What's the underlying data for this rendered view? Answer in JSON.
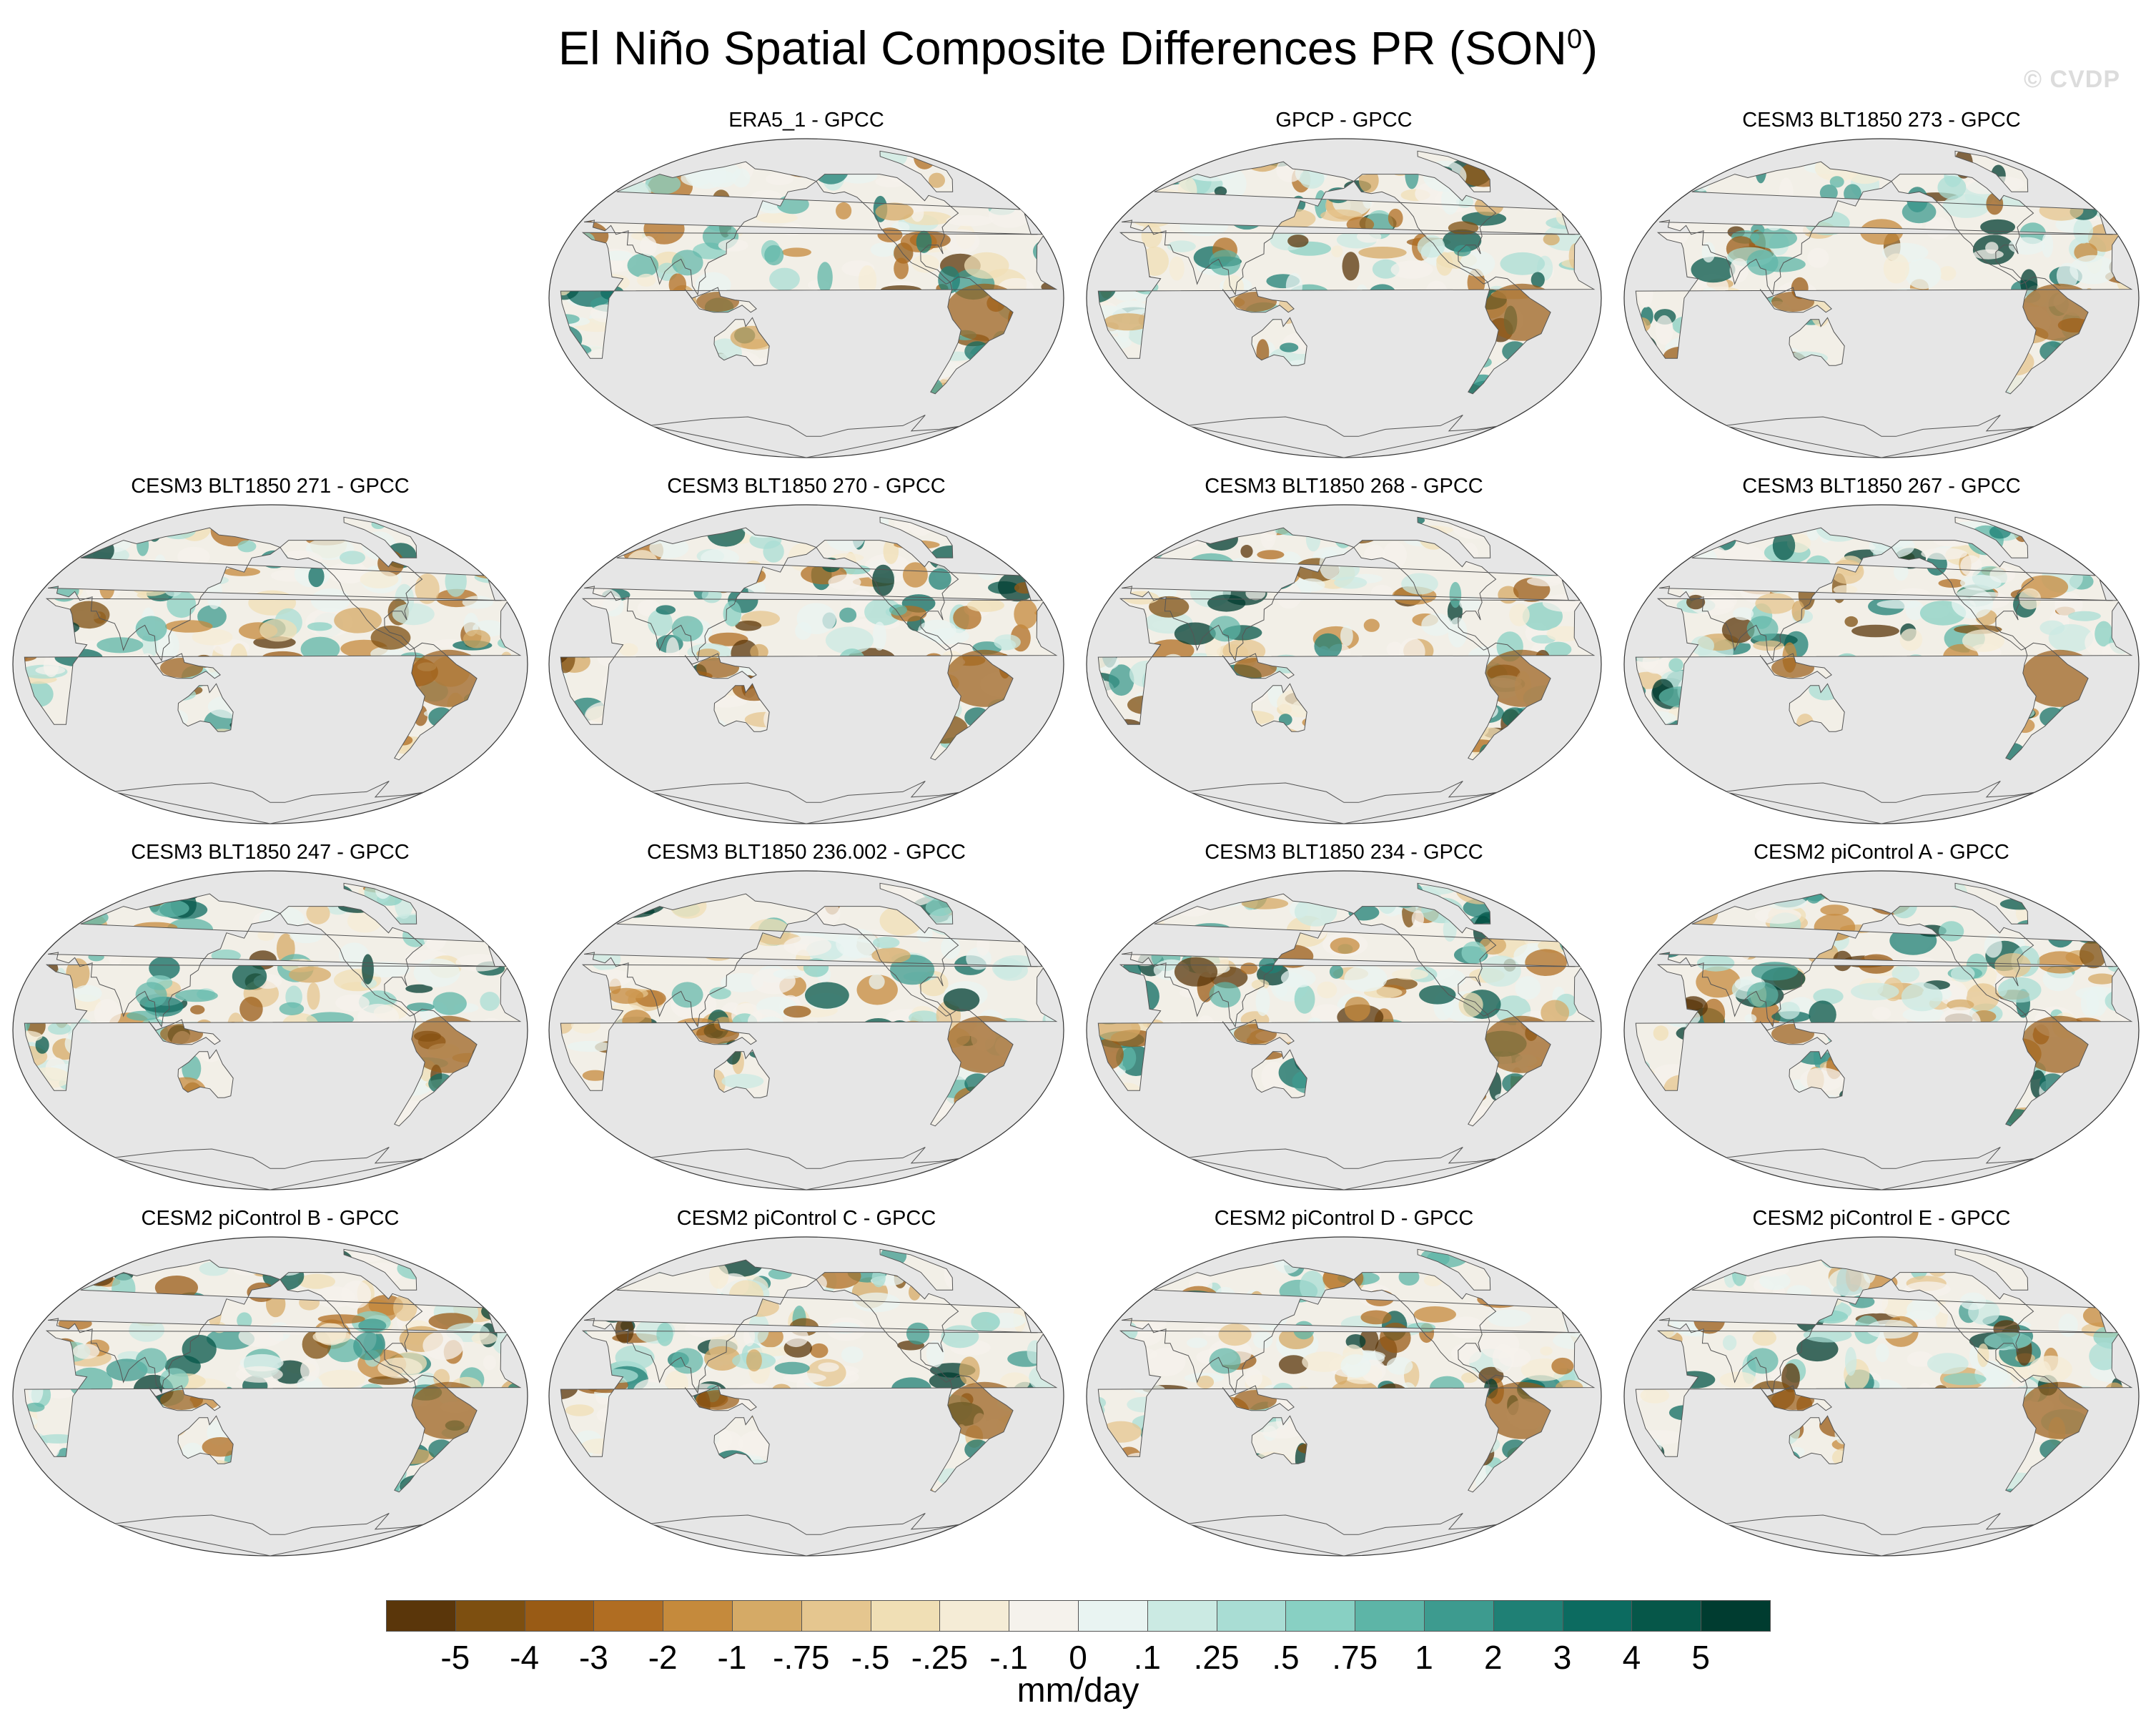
{
  "figure": {
    "title": "El Niño Spatial Composite Differences PR (SON",
    "title_sup": "0",
    "title_end": ")",
    "watermark": "© CVDP"
  },
  "panels": [
    {
      "title": "ERA5_1 - GPCC"
    },
    {
      "title": "GPCP - GPCC"
    },
    {
      "title": "CESM3 BLT1850 273 - GPCC"
    },
    {
      "title": "CESM3 BLT1850 271 - GPCC"
    },
    {
      "title": "CESM3 BLT1850 270 - GPCC"
    },
    {
      "title": "CESM3 BLT1850 268 - GPCC"
    },
    {
      "title": "CESM3 BLT1850 267 - GPCC"
    },
    {
      "title": "CESM3 BLT1850 247 - GPCC"
    },
    {
      "title": "CESM3 BLT1850 236.002 - GPCC"
    },
    {
      "title": "CESM3 BLT1850 234 - GPCC"
    },
    {
      "title": "CESM2 piControl A - GPCC"
    },
    {
      "title": "CESM2 piControl B - GPCC"
    },
    {
      "title": "CESM2 piControl C - GPCC"
    },
    {
      "title": "CESM2 piControl D - GPCC"
    },
    {
      "title": "CESM2 piControl E - GPCC"
    }
  ],
  "map": {
    "projection": "Robinson, Pacific-centered",
    "ocean_color": "#e6e6e6",
    "coastline_color": "#555555",
    "land_neutral_color": "#f2efe7"
  },
  "colorbar": {
    "unit": "mm/day",
    "tick_labels": [
      "-5",
      "-4",
      "-3",
      "-2",
      "-1",
      "-.75",
      "-.5",
      "-.25",
      "-.1",
      "0",
      ".1",
      ".25",
      ".5",
      ".75",
      "1",
      "2",
      "3",
      "4",
      "5"
    ],
    "colors": [
      "#5a360a",
      "#7d4f10",
      "#995b15",
      "#b06d22",
      "#c58a3c",
      "#d5aa66",
      "#e5c68f",
      "#f0dfb5",
      "#f5ecd6",
      "#f5f2ec",
      "#e9f4f2",
      "#cbeae3",
      "#a9ddd4",
      "#88d0c3",
      "#5db5a7",
      "#3d9b8f",
      "#1f8075",
      "#0c6b60",
      "#065749",
      "#003c30"
    ]
  }
}
